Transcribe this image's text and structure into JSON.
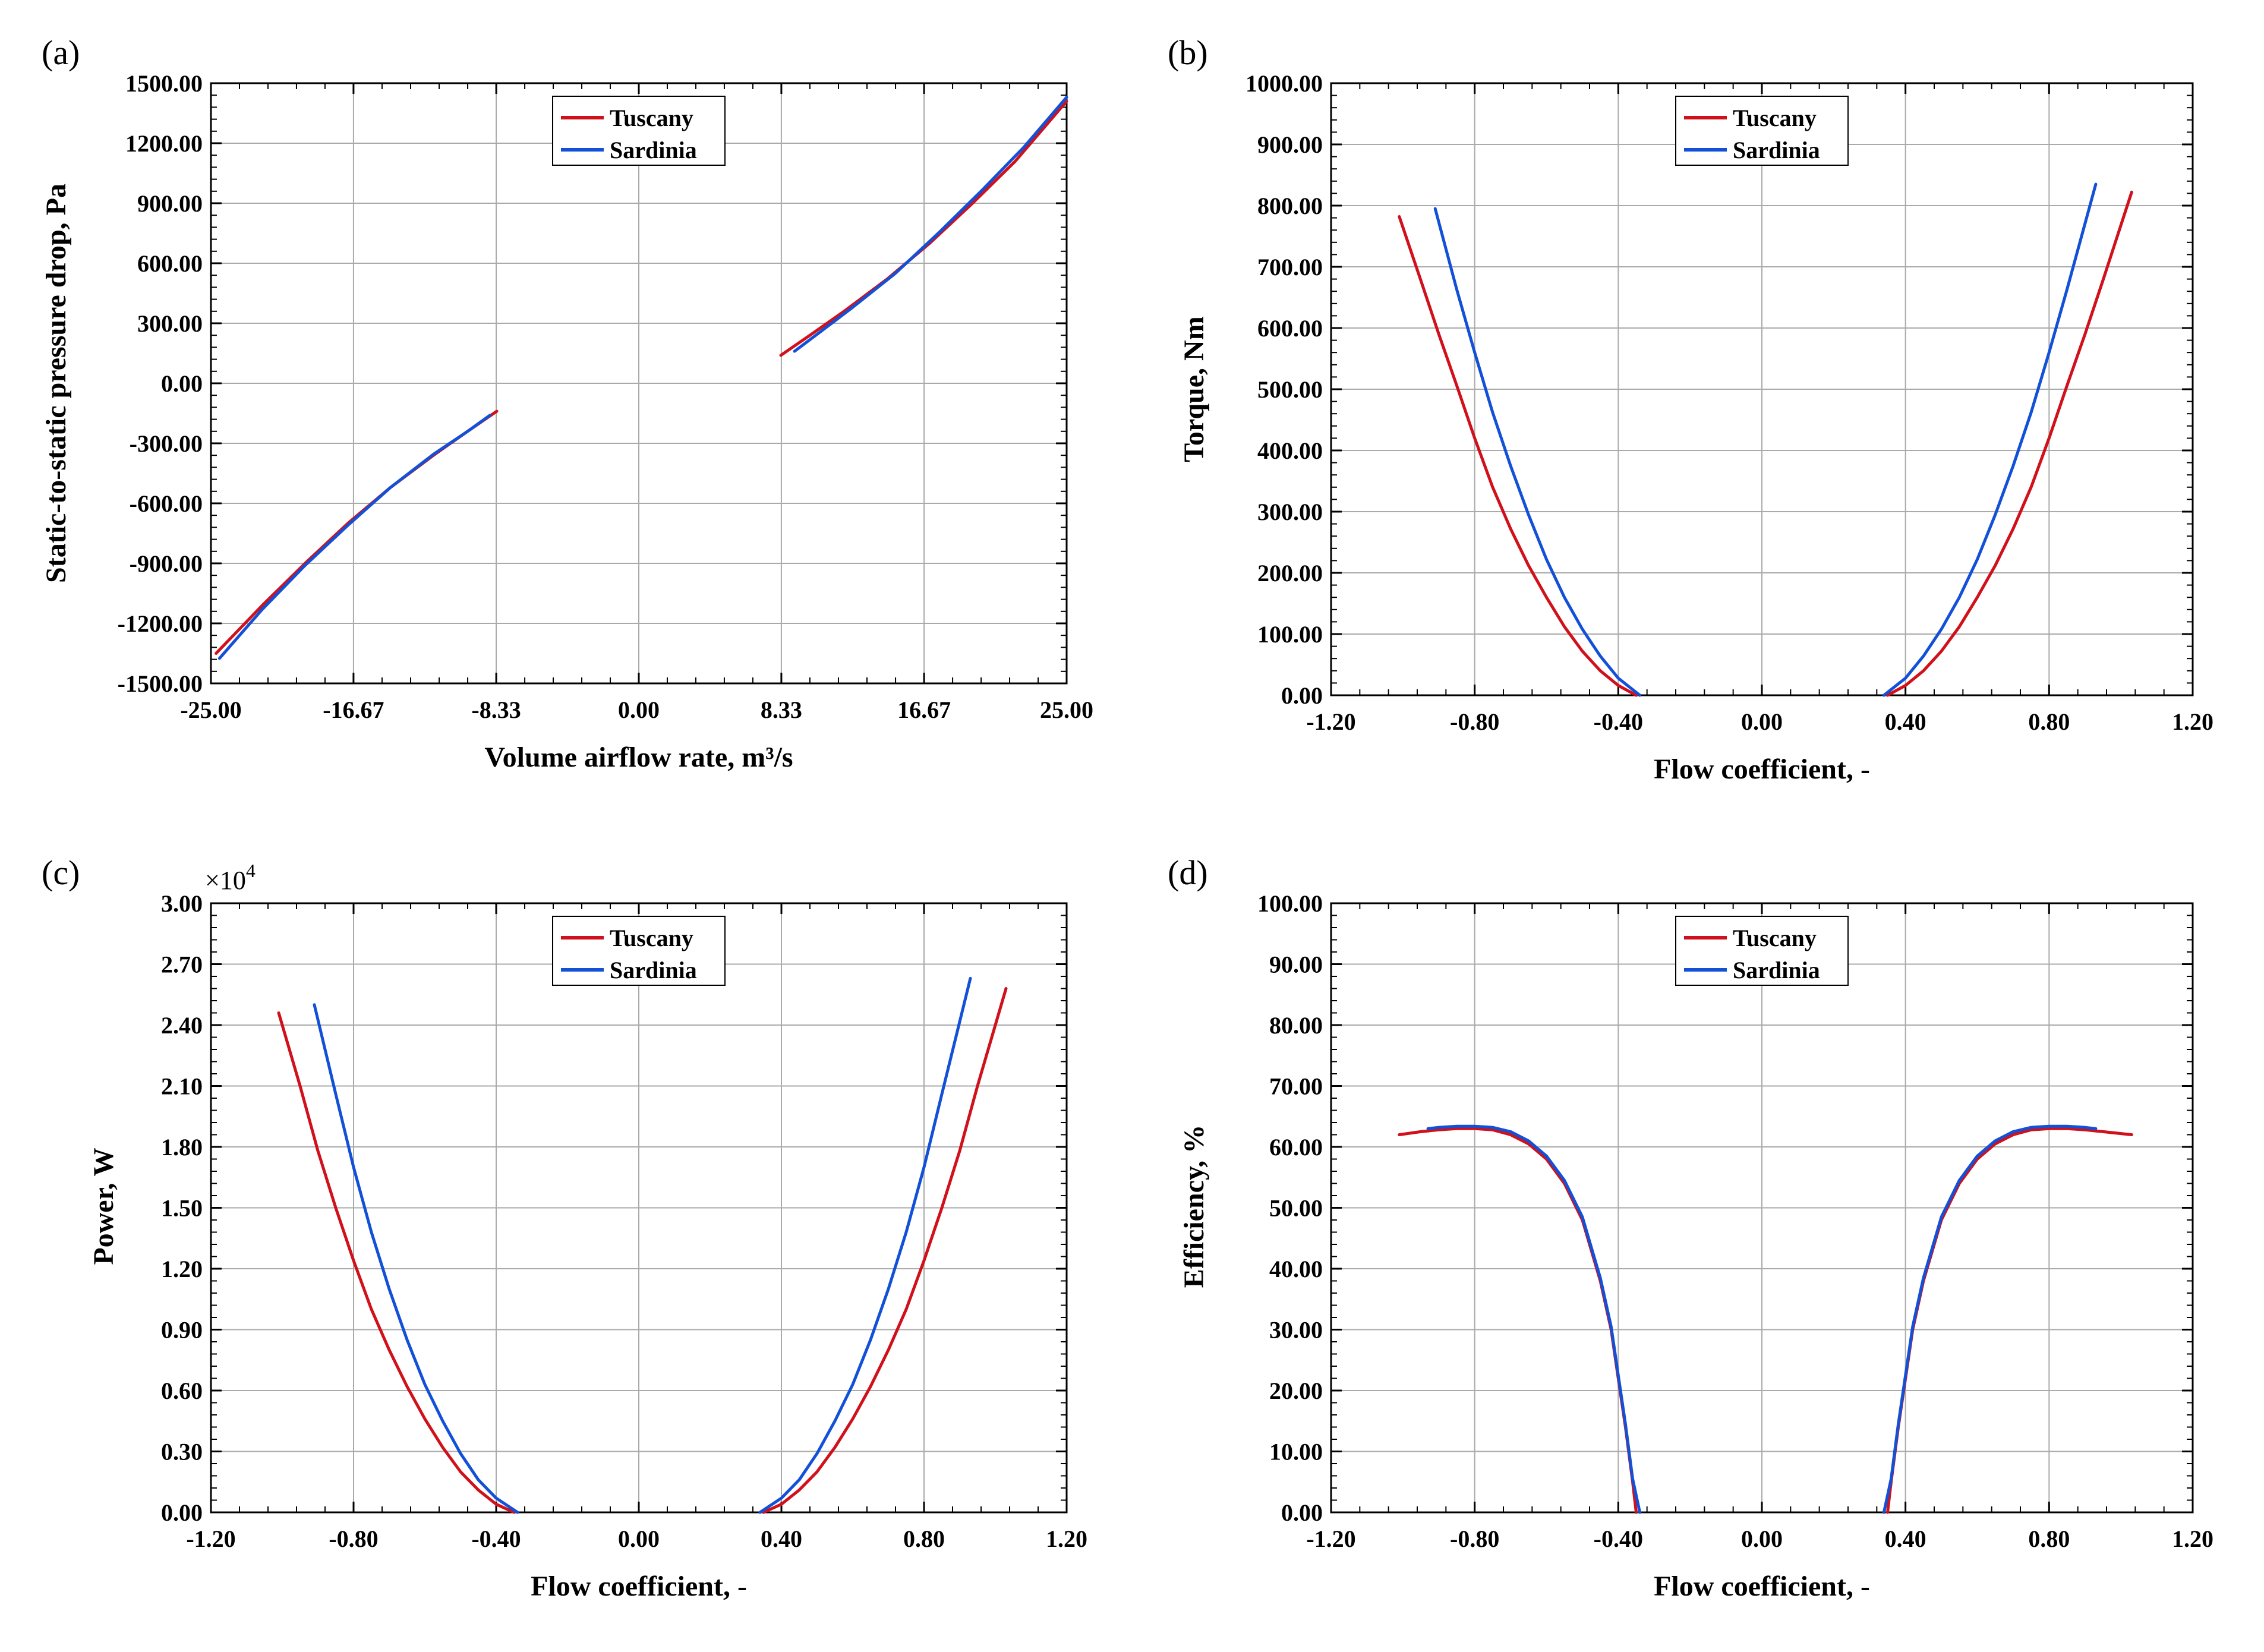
{
  "colors": {
    "Tuscany": "#d0101a",
    "Sardinia": "#1250d8",
    "grid": "#aaaaaa",
    "axis": "#000000"
  },
  "chart_data": [
    {
      "panel": "(a)",
      "type": "line",
      "xlabel": "Volume airflow rate, m³/s",
      "ylabel": "Static-to-static pressure drop, Pa",
      "xlim": [
        -25,
        25
      ],
      "ylim": [
        -1500,
        1500
      ],
      "xticks": [
        -25,
        -16.67,
        -8.33,
        0,
        8.33,
        16.67,
        25
      ],
      "xtick_labels": [
        "-25.00",
        "-16.67",
        "-8.33",
        "0.00",
        "8.33",
        "16.67",
        "25.00"
      ],
      "yticks": [
        -1500,
        -1200,
        -900,
        -600,
        -300,
        0,
        300,
        600,
        900,
        1200,
        1500
      ],
      "ytick_labels": [
        "-1500.00",
        "-1200.00",
        "-900.00",
        "-600.00",
        "-300.00",
        "0.00",
        "300.00",
        "600.00",
        "900.00",
        "1200.00",
        "1500.00"
      ],
      "legend": {
        "position": "top-center",
        "entries": [
          "Tuscany",
          "Sardinia"
        ]
      },
      "series": [
        {
          "name": "Tuscany",
          "segments": [
            {
              "x": [
                -24.7,
                -22,
                -19.5,
                -17,
                -14.5,
                -12,
                -10,
                -8.3
              ],
              "y": [
                -1350,
                -1110,
                -900,
                -700,
                -520,
                -360,
                -240,
                -140
              ]
            },
            {
              "x": [
                8.3,
                10,
                12,
                14.5,
                17,
                19.5,
                22,
                25
              ],
              "y": [
                140,
                240,
                360,
                520,
                700,
                900,
                1110,
                1410
              ]
            }
          ]
        },
        {
          "name": "Sardinia",
          "segments": [
            {
              "x": [
                -24.5,
                -22,
                -19.5,
                -17,
                -14.5,
                -12,
                -10,
                -8.7
              ],
              "y": [
                -1375,
                -1130,
                -910,
                -710,
                -520,
                -355,
                -240,
                -160
              ]
            },
            {
              "x": [
                9.1,
                10.5,
                12.5,
                15,
                17.5,
                20,
                22.5,
                25
              ],
              "y": [
                160,
                250,
                380,
                550,
                750,
                960,
                1180,
                1430
              ]
            }
          ]
        }
      ]
    },
    {
      "panel": "(b)",
      "type": "line",
      "xlabel": "Flow coefficient, -",
      "ylabel": "Torque, Nm",
      "xlim": [
        -1.2,
        1.2
      ],
      "ylim": [
        0,
        1000
      ],
      "xticks": [
        -1.2,
        -0.8,
        -0.4,
        0,
        0.4,
        0.8,
        1.2
      ],
      "xtick_labels": [
        "-1.20",
        "-0.80",
        "-0.40",
        "0.00",
        "0.40",
        "0.80",
        "1.20"
      ],
      "yticks": [
        0,
        100,
        200,
        300,
        400,
        500,
        600,
        700,
        800,
        900,
        1000
      ],
      "ytick_labels": [
        "0.00",
        "100.00",
        "200.00",
        "300.00",
        "400.00",
        "500.00",
        "600.00",
        "700.00",
        "800.00",
        "900.00",
        "1000.00"
      ],
      "legend": {
        "position": "top-center",
        "entries": [
          "Tuscany",
          "Sardinia"
        ]
      },
      "series": [
        {
          "name": "Tuscany",
          "segments": [
            {
              "x": [
                -1.01,
                -0.95,
                -0.9,
                -0.85,
                -0.8,
                -0.75,
                -0.7,
                -0.65,
                -0.6,
                -0.55,
                -0.5,
                -0.45,
                -0.4,
                -0.35
              ],
              "y": [
                782,
                678,
                590,
                506,
                420,
                340,
                272,
                212,
                160,
                112,
                72,
                40,
                16,
                0
              ]
            },
            {
              "x": [
                0.35,
                0.4,
                0.45,
                0.5,
                0.55,
                0.6,
                0.65,
                0.7,
                0.75,
                0.8,
                0.85,
                0.9,
                0.95,
                1.03
              ],
              "y": [
                0,
                16,
                40,
                72,
                112,
                160,
                212,
                272,
                340,
                420,
                506,
                590,
                678,
                822
              ]
            }
          ]
        },
        {
          "name": "Sardinia",
          "segments": [
            {
              "x": [
                -0.91,
                -0.85,
                -0.8,
                -0.75,
                -0.7,
                -0.65,
                -0.6,
                -0.55,
                -0.5,
                -0.45,
                -0.4,
                -0.34
              ],
              "y": [
                795,
                663,
                560,
                462,
                375,
                295,
                222,
                160,
                108,
                64,
                28,
                0
              ]
            },
            {
              "x": [
                0.34,
                0.4,
                0.45,
                0.5,
                0.55,
                0.6,
                0.65,
                0.7,
                0.75,
                0.8,
                0.85,
                0.93
              ],
              "y": [
                0,
                28,
                64,
                108,
                160,
                222,
                295,
                375,
                462,
                560,
                663,
                835
              ]
            }
          ]
        }
      ]
    },
    {
      "panel": "(c)",
      "type": "line",
      "xlabel": "Flow coefficient, -",
      "ylabel": "Power, W",
      "y_multiplier": "×10",
      "y_multiplier_exponent": "4",
      "xlim": [
        -1.2,
        1.2
      ],
      "ylim": [
        0,
        3.0
      ],
      "xticks": [
        -1.2,
        -0.8,
        -0.4,
        0,
        0.4,
        0.8,
        1.2
      ],
      "xtick_labels": [
        "-1.20",
        "-0.80",
        "-0.40",
        "0.00",
        "0.40",
        "0.80",
        "1.20"
      ],
      "yticks": [
        0,
        0.3,
        0.6,
        0.9,
        1.2,
        1.5,
        1.8,
        2.1,
        2.4,
        2.7,
        3.0
      ],
      "ytick_labels": [
        "0.00",
        "0.30",
        "0.60",
        "0.90",
        "1.20",
        "1.50",
        "1.80",
        "2.10",
        "2.40",
        "2.70",
        "3.00"
      ],
      "legend": {
        "position": "top-center",
        "entries": [
          "Tuscany",
          "Sardinia"
        ]
      },
      "series": [
        {
          "name": "Tuscany",
          "segments": [
            {
              "x": [
                -1.01,
                -0.95,
                -0.9,
                -0.85,
                -0.8,
                -0.75,
                -0.7,
                -0.65,
                -0.6,
                -0.55,
                -0.5,
                -0.45,
                -0.4,
                -0.35
              ],
              "y": [
                2.46,
                2.1,
                1.78,
                1.5,
                1.24,
                1.0,
                0.8,
                0.62,
                0.46,
                0.32,
                0.2,
                0.11,
                0.04,
                0
              ]
            },
            {
              "x": [
                0.35,
                0.4,
                0.45,
                0.5,
                0.55,
                0.6,
                0.65,
                0.7,
                0.75,
                0.8,
                0.85,
                0.9,
                0.95,
                1.03
              ],
              "y": [
                0,
                0.04,
                0.11,
                0.2,
                0.32,
                0.46,
                0.62,
                0.8,
                1.0,
                1.24,
                1.5,
                1.78,
                2.1,
                2.58
              ]
            }
          ]
        },
        {
          "name": "Sardinia",
          "segments": [
            {
              "x": [
                -0.91,
                -0.85,
                -0.8,
                -0.75,
                -0.7,
                -0.65,
                -0.6,
                -0.55,
                -0.5,
                -0.45,
                -0.4,
                -0.34
              ],
              "y": [
                2.5,
                2.06,
                1.7,
                1.38,
                1.1,
                0.85,
                0.63,
                0.45,
                0.29,
                0.16,
                0.07,
                0
              ]
            },
            {
              "x": [
                0.34,
                0.4,
                0.45,
                0.5,
                0.55,
                0.6,
                0.65,
                0.7,
                0.75,
                0.8,
                0.85,
                0.93
              ],
              "y": [
                0,
                0.07,
                0.16,
                0.29,
                0.45,
                0.63,
                0.85,
                1.1,
                1.38,
                1.7,
                2.06,
                2.63
              ]
            }
          ]
        }
      ]
    },
    {
      "panel": "(d)",
      "type": "line",
      "xlabel": "Flow coefficient, -",
      "ylabel": "Efficiency, %",
      "xlim": [
        -1.2,
        1.2
      ],
      "ylim": [
        0,
        100
      ],
      "xticks": [
        -1.2,
        -0.8,
        -0.4,
        0,
        0.4,
        0.8,
        1.2
      ],
      "xtick_labels": [
        "-1.20",
        "-0.80",
        "-0.40",
        "0.00",
        "0.40",
        "0.80",
        "1.20"
      ],
      "yticks": [
        0,
        10,
        20,
        30,
        40,
        50,
        60,
        70,
        80,
        90,
        100
      ],
      "ytick_labels": [
        "0.00",
        "10.00",
        "20.00",
        "30.00",
        "40.00",
        "50.00",
        "60.00",
        "70.00",
        "80.00",
        "90.00",
        "100.00"
      ],
      "legend": {
        "position": "top-center",
        "entries": [
          "Tuscany",
          "Sardinia"
        ]
      },
      "series": [
        {
          "name": "Tuscany",
          "segments": [
            {
              "x": [
                -1.01,
                -0.95,
                -0.9,
                -0.85,
                -0.8,
                -0.75,
                -0.7,
                -0.65,
                -0.6,
                -0.55,
                -0.5,
                -0.45,
                -0.42,
                -0.4,
                -0.38,
                -0.36,
                -0.35
              ],
              "y": [
                62,
                62.5,
                62.8,
                63,
                63,
                62.8,
                62,
                60.5,
                58,
                54,
                48,
                38,
                30,
                22,
                14,
                5,
                0
              ]
            },
            {
              "x": [
                0.35,
                0.36,
                0.38,
                0.4,
                0.42,
                0.45,
                0.5,
                0.55,
                0.6,
                0.65,
                0.7,
                0.75,
                0.8,
                0.85,
                0.9,
                0.95,
                1.03
              ],
              "y": [
                0,
                5,
                14,
                22,
                30,
                38,
                48,
                54,
                58,
                60.5,
                62,
                62.8,
                63,
                63,
                62.8,
                62.5,
                62
              ]
            }
          ]
        },
        {
          "name": "Sardinia",
          "segments": [
            {
              "x": [
                -0.93,
                -0.9,
                -0.85,
                -0.8,
                -0.75,
                -0.7,
                -0.65,
                -0.6,
                -0.55,
                -0.5,
                -0.45,
                -0.42,
                -0.4,
                -0.38,
                -0.36,
                -0.34
              ],
              "y": [
                63,
                63.2,
                63.4,
                63.4,
                63.2,
                62.5,
                61,
                58.5,
                54.5,
                48.5,
                38.5,
                30.5,
                22.5,
                14.5,
                5.5,
                0
              ]
            },
            {
              "x": [
                0.34,
                0.36,
                0.38,
                0.4,
                0.42,
                0.45,
                0.5,
                0.55,
                0.6,
                0.65,
                0.7,
                0.75,
                0.8,
                0.85,
                0.9,
                0.93
              ],
              "y": [
                0,
                5.5,
                14.5,
                22.5,
                30.5,
                38.5,
                48.5,
                54.5,
                58.5,
                61,
                62.5,
                63.2,
                63.4,
                63.4,
                63.2,
                63
              ]
            }
          ]
        }
      ]
    }
  ]
}
